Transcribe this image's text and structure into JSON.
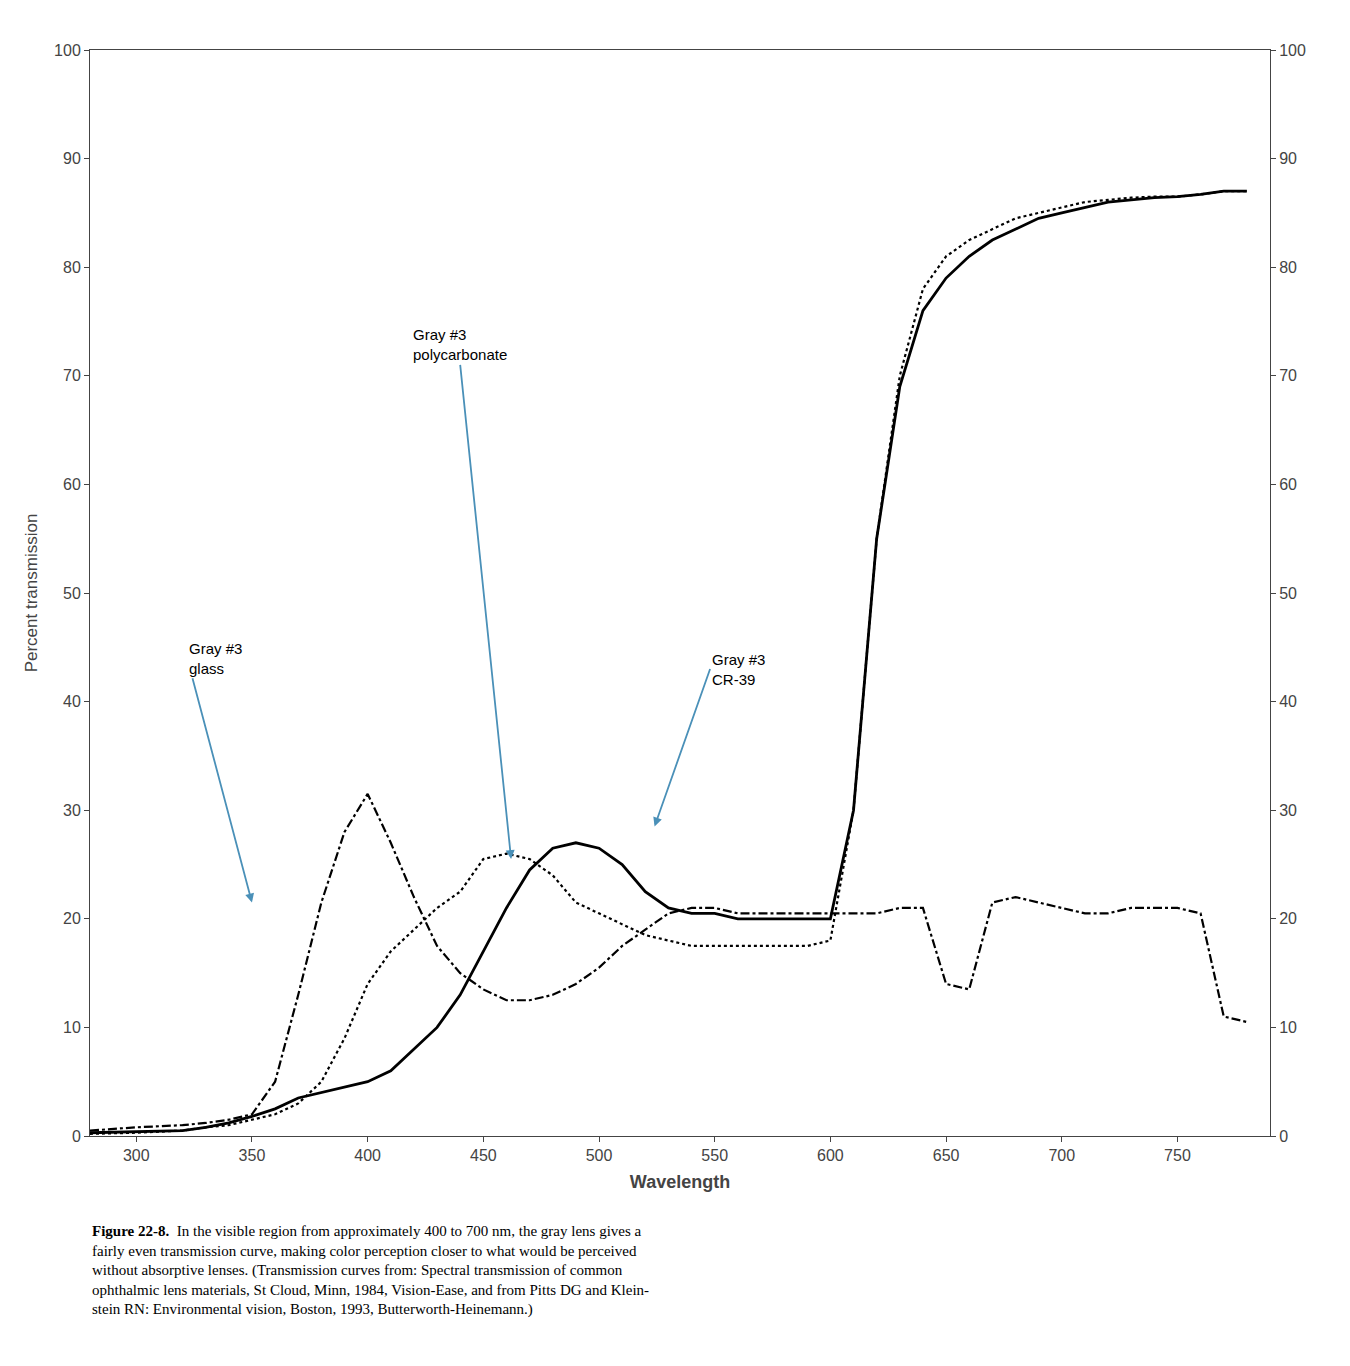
{
  "chart_data": {
    "type": "line",
    "xlabel": "Wavelength",
    "ylabel": "Percent transmission",
    "xlim": [
      280,
      790
    ],
    "ylim": [
      0,
      100
    ],
    "xticks": [
      300,
      350,
      400,
      450,
      500,
      550,
      600,
      650,
      700,
      750
    ],
    "yticks": [
      0,
      10,
      20,
      30,
      40,
      50,
      60,
      70,
      80,
      90,
      100
    ],
    "y2lim": [
      0,
      100
    ],
    "y2ticks": [
      0,
      10,
      20,
      30,
      40,
      50,
      60,
      70,
      80,
      90,
      100
    ],
    "grid": false,
    "caption_bold": "Figure 22-8.",
    "caption": "  In the visible region from approximately 400 to 700 nm, the gray lens gives a\nfairly even transmission curve, making color perception closer to what would be perceived\nwithout absorptive lenses. (Transmission curves from: Spectral transmission of common\nophthalmic lens materials, St Cloud, Minn, 1984, Vision-Ease, and from Pitts DG and Klein-\nstein RN: Environmental vision, Boston, 1993, Butterworth-Heinemann.)",
    "x": [
      280,
      300,
      320,
      330,
      340,
      350,
      360,
      370,
      380,
      390,
      400,
      410,
      420,
      430,
      440,
      450,
      460,
      470,
      480,
      490,
      500,
      510,
      520,
      530,
      540,
      550,
      560,
      570,
      580,
      590,
      600,
      610,
      620,
      630,
      640,
      650,
      660,
      670,
      680,
      690,
      700,
      710,
      720,
      730,
      740,
      750,
      760,
      770,
      780
    ],
    "series": [
      {
        "color": "#000000",
        "line_style": "dashdot",
        "values": [
          0.5,
          0.8,
          1.0,
          1.2,
          1.5,
          2.0,
          5.0,
          13.0,
          21.5,
          28.0,
          31.5,
          27.0,
          22.0,
          17.5,
          15.0,
          13.5,
          12.5,
          12.5,
          13.0,
          14.0,
          15.5,
          17.5,
          19.0,
          20.5,
          21.0,
          21.0,
          20.5,
          20.5,
          20.5,
          20.5,
          20.5,
          20.5,
          20.5,
          21.0,
          21.0,
          14.0,
          13.5,
          21.5,
          22.0,
          21.5,
          21.0,
          20.5,
          20.5,
          21.0,
          21.0,
          21.0,
          20.5,
          11.0,
          10.5
        ]
      },
      {
        "color": "#000000",
        "line_style": "dot",
        "values": [
          0.2,
          0.3,
          0.5,
          0.8,
          1.0,
          1.5,
          2.0,
          3.0,
          5.0,
          9.0,
          14.0,
          17.0,
          19.0,
          21.0,
          22.5,
          25.5,
          26.0,
          25.5,
          24.0,
          21.5,
          20.5,
          19.5,
          18.5,
          18.0,
          17.5,
          17.5,
          17.5,
          17.5,
          17.5,
          17.5,
          18.0,
          30.0,
          55.0,
          70.0,
          78.0,
          81.0,
          82.5,
          83.5,
          84.5,
          85.0,
          85.5,
          86.0,
          86.2,
          86.4,
          86.5,
          86.5,
          86.7,
          87.0,
          87.0
        ]
      },
      {
        "color": "#000000",
        "line_style": "solid",
        "values": [
          0.3,
          0.4,
          0.5,
          0.8,
          1.2,
          1.8,
          2.5,
          3.5,
          4.0,
          4.5,
          5.0,
          6.0,
          8.0,
          10.0,
          13.0,
          17.0,
          21.0,
          24.5,
          26.5,
          27.0,
          26.5,
          25.0,
          22.5,
          21.0,
          20.5,
          20.5,
          20.0,
          20.0,
          20.0,
          20.0,
          20.0,
          30.0,
          55.0,
          69.0,
          76.0,
          79.0,
          81.0,
          82.5,
          83.5,
          84.5,
          85.0,
          85.5,
          86.0,
          86.2,
          86.4,
          86.5,
          86.7,
          87.0,
          87.0
        ]
      }
    ],
    "annotations": [
      {
        "text": "Gray #3\nglass",
        "x": 322,
        "y": 44,
        "arrow_x": 350,
        "arrow_y": 21.5,
        "color": "#4a90b8"
      },
      {
        "text": "Gray #3\npolycarbonate",
        "x": 440,
        "y": 71,
        "arrow_x": 462,
        "arrow_y": 25.5,
        "color": "#4a90b8"
      },
      {
        "text": "Gray #3\nCR-39",
        "x": 548,
        "y": 43,
        "arrow_x": 524,
        "arrow_y": 28.5,
        "color": "#4a90b8"
      }
    ]
  }
}
